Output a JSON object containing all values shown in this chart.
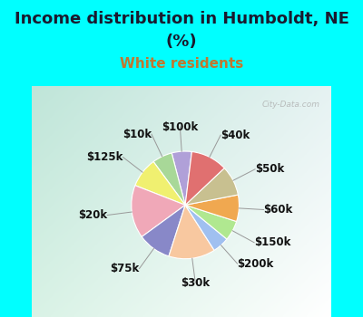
{
  "title_line1": "Income distribution in Humboldt, NE",
  "title_line2": "(%)",
  "subtitle": "White residents",
  "title_color": "#1a1a2e",
  "subtitle_color": "#c07830",
  "bg_cyan": "#00ffff",
  "labels": [
    "$100k",
    "$10k",
    "$125k",
    "$20k",
    "$75k",
    "$30k",
    "$200k",
    "$150k",
    "$60k",
    "$50k",
    "$40k"
  ],
  "values": [
    6,
    6,
    9,
    16,
    10,
    14,
    5,
    6,
    8,
    9,
    11
  ],
  "colors": [
    "#b0a0d8",
    "#a8d898",
    "#f0f070",
    "#f0a8b8",
    "#8888c8",
    "#f8c8a0",
    "#a0c0f0",
    "#b0e890",
    "#f0a850",
    "#c8c090",
    "#e07070"
  ],
  "label_fontsize": 8.5,
  "title_fontsize": 13,
  "subtitle_fontsize": 11,
  "startangle": 83,
  "watermark": "City-Data.com"
}
